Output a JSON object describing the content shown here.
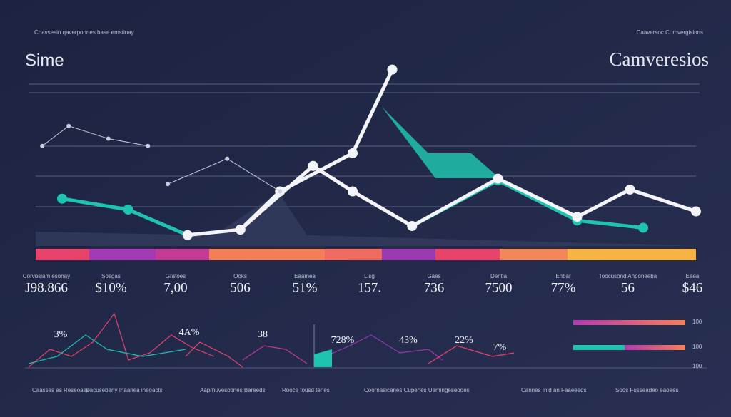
{
  "header": {
    "left_caption": "Cnavsesin qaverponnes hase emstinay",
    "right_caption": "Caaversoc Cumvergisions",
    "left_title": "Sime",
    "right_title": "Camveresios"
  },
  "chart_data": {
    "type": "line",
    "xlim": [
      0,
      100
    ],
    "ylim": [
      0,
      100
    ],
    "series": [
      {
        "color": "#1fc4b0",
        "x": [
          4,
          14,
          23
        ],
        "values": [
          26,
          20,
          6
        ]
      },
      {
        "color": "#1fc4b0",
        "x": [
          57,
          70,
          82,
          92
        ],
        "values": [
          11,
          36,
          14,
          10
        ]
      },
      {
        "color": "#f4f5fa",
        "x": [
          23,
          31,
          42,
          48,
          57,
          70,
          82,
          90,
          100
        ],
        "values": [
          6,
          9,
          44,
          30,
          11,
          37,
          16,
          31,
          19
        ]
      },
      {
        "color": "#f4f5fa",
        "x": [
          31,
          37,
          48,
          54
        ],
        "values": [
          9,
          30,
          51,
          97
        ]
      },
      {
        "color": "#c9cde0",
        "x": [
          1,
          5,
          11,
          17
        ],
        "values": [
          55,
          66,
          59,
          55
        ]
      },
      {
        "color": "#c9cde0",
        "x": [
          20,
          29,
          37
        ],
        "values": [
          34,
          48,
          30
        ]
      }
    ]
  },
  "stats": [
    {
      "label": "Corvosiam esonay",
      "value": "J98.866"
    },
    {
      "label": "Sosgas",
      "value": "$10%"
    },
    {
      "label": "Gratoes",
      "value": "7,00"
    },
    {
      "label": "Ooks",
      "value": "506"
    },
    {
      "label": "Eaamea",
      "value": "51%"
    },
    {
      "label": "Lisg",
      "value": "157."
    },
    {
      "label": "Gaes",
      "value": "736"
    },
    {
      "label": "Dentia",
      "value": "7500"
    },
    {
      "label": "Enbar",
      "value": "77%"
    },
    {
      "label": "Toocusond Anponeeba",
      "value": "56"
    },
    {
      "label": "Eaea",
      "value": "$46"
    }
  ],
  "mini": [
    "3%",
    "4A%",
    "38",
    "728%",
    "43%",
    "22%",
    "7%"
  ],
  "bars": [
    "100",
    "100",
    "100"
  ],
  "footer": [
    "Caasses as Reseoaes",
    "Dacusebany Inaanea ineoacts",
    "Aaprnuvesotines Bareeds",
    "Rooce tousd tenes",
    "Coornasicanes Cupenes Uemingeseodes",
    "Cannes Inid an Faaeeeds",
    "Soos Fusseadeo eaoaes"
  ]
}
